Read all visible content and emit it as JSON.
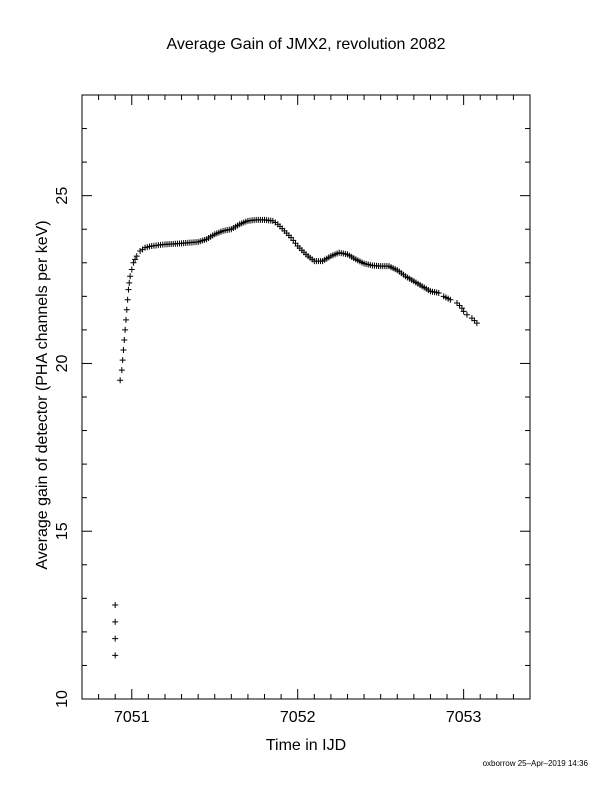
{
  "chart_data": {
    "type": "scatter",
    "title": "Average Gain of JMX2, revolution 2082",
    "xlabel": "Time in IJD",
    "ylabel": "Average gain of detector (PHA channels per keV)",
    "xlim": [
      7050.7,
      7053.4
    ],
    "ylim": [
      10,
      28
    ],
    "xticks": [
      7051,
      7052,
      7053
    ],
    "yticks": [
      10,
      15,
      20,
      25
    ],
    "marker": "+",
    "grid": false,
    "points": [
      [
        7050.9,
        11.3
      ],
      [
        7050.9,
        11.8
      ],
      [
        7050.9,
        12.3
      ],
      [
        7050.9,
        12.8
      ],
      [
        7050.93,
        19.5
      ],
      [
        7050.94,
        19.8
      ],
      [
        7050.945,
        20.1
      ],
      [
        7050.95,
        20.4
      ],
      [
        7050.955,
        20.7
      ],
      [
        7050.96,
        21.0
      ],
      [
        7050.965,
        21.3
      ],
      [
        7050.97,
        21.6
      ],
      [
        7050.975,
        21.9
      ],
      [
        7050.98,
        22.2
      ],
      [
        7050.985,
        22.4
      ],
      [
        7050.99,
        22.6
      ],
      [
        7051.0,
        22.8
      ],
      [
        7051.01,
        23.0
      ],
      [
        7051.02,
        23.1
      ],
      [
        7051.03,
        23.2
      ],
      [
        7051.05,
        23.35
      ],
      [
        7051.08,
        23.45
      ],
      [
        7051.12,
        23.5
      ],
      [
        7051.2,
        23.55
      ],
      [
        7051.3,
        23.58
      ],
      [
        7051.4,
        23.62
      ],
      [
        7051.45,
        23.7
      ],
      [
        7051.5,
        23.85
      ],
      [
        7051.55,
        23.95
      ],
      [
        7051.6,
        24.0
      ],
      [
        7051.65,
        24.15
      ],
      [
        7051.7,
        24.25
      ],
      [
        7051.75,
        24.28
      ],
      [
        7051.8,
        24.28
      ],
      [
        7051.85,
        24.25
      ],
      [
        7051.88,
        24.15
      ],
      [
        7051.92,
        23.95
      ],
      [
        7051.96,
        23.75
      ],
      [
        7052.0,
        23.5
      ],
      [
        7052.05,
        23.25
      ],
      [
        7052.1,
        23.05
      ],
      [
        7052.15,
        23.05
      ],
      [
        7052.2,
        23.2
      ],
      [
        7052.25,
        23.3
      ],
      [
        7052.3,
        23.25
      ],
      [
        7052.35,
        23.1
      ],
      [
        7052.4,
        22.98
      ],
      [
        7052.45,
        22.92
      ],
      [
        7052.5,
        22.9
      ],
      [
        7052.55,
        22.9
      ],
      [
        7052.6,
        22.78
      ],
      [
        7052.65,
        22.6
      ],
      [
        7052.7,
        22.45
      ],
      [
        7052.75,
        22.3
      ],
      [
        7052.8,
        22.15
      ],
      [
        7052.85,
        22.1
      ],
      [
        7052.88,
        22.0
      ],
      [
        7052.92,
        21.9
      ],
      [
        7052.96,
        21.8
      ],
      [
        7052.99,
        21.65
      ],
      [
        7053.0,
        21.55
      ],
      [
        7053.02,
        21.45
      ],
      [
        7053.05,
        21.35
      ],
      [
        7053.08,
        21.2
      ]
    ]
  },
  "credit": "oxborrow 25–Apr–2019 14:36"
}
